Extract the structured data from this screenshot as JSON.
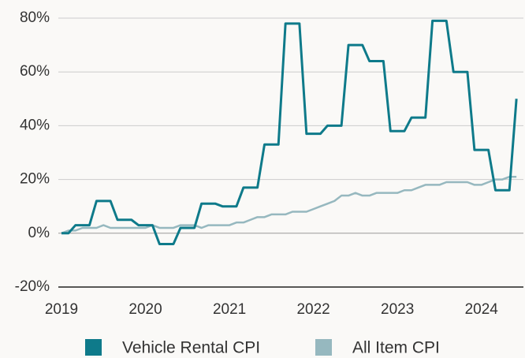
{
  "chart_data": {
    "type": "line",
    "x": [
      2019,
      2019.083,
      2019.167,
      2019.25,
      2019.333,
      2019.417,
      2019.5,
      2019.583,
      2019.667,
      2019.75,
      2019.833,
      2019.917,
      2020,
      2020.083,
      2020.167,
      2020.25,
      2020.333,
      2020.417,
      2020.5,
      2020.583,
      2020.667,
      2020.75,
      2020.833,
      2020.917,
      2021,
      2021.083,
      2021.167,
      2021.25,
      2021.333,
      2021.417,
      2021.5,
      2021.583,
      2021.667,
      2021.75,
      2021.833,
      2021.917,
      2022,
      2022.083,
      2022.167,
      2022.25,
      2022.333,
      2022.417,
      2022.5,
      2022.583,
      2022.667,
      2022.75,
      2022.833,
      2022.917,
      2023,
      2023.083,
      2023.167,
      2023.25,
      2023.333,
      2023.417,
      2023.5,
      2023.583,
      2023.667,
      2023.75,
      2023.833,
      2023.917,
      2024,
      2024.083,
      2024.167,
      2024.25,
      2024.333,
      2024.417
    ],
    "series": [
      {
        "name": "Vehicle Rental CPI",
        "color": "#0e7a8a",
        "values": [
          0,
          0,
          3,
          3,
          3,
          12,
          12,
          12,
          5,
          5,
          5,
          3,
          3,
          3,
          -4,
          -4,
          -4,
          2,
          2,
          2,
          11,
          11,
          11,
          10,
          10,
          10,
          17,
          17,
          17,
          33,
          33,
          33,
          78,
          78,
          78,
          37,
          37,
          37,
          40,
          40,
          40,
          70,
          70,
          70,
          64,
          64,
          64,
          38,
          38,
          38,
          43,
          43,
          43,
          79,
          79,
          79,
          60,
          60,
          60,
          31,
          31,
          31,
          16,
          16,
          16,
          50
        ]
      },
      {
        "name": "All Item CPI",
        "color": "#96b8bf",
        "values": [
          0,
          1,
          1,
          2,
          2,
          2,
          3,
          2,
          2,
          2,
          2,
          2,
          2,
          3,
          2,
          2,
          2,
          3,
          3,
          3,
          2,
          3,
          3,
          3,
          3,
          4,
          4,
          5,
          6,
          6,
          7,
          7,
          7,
          8,
          8,
          8,
          9,
          10,
          11,
          12,
          14,
          14,
          15,
          14,
          14,
          15,
          15,
          15,
          15,
          16,
          16,
          17,
          18,
          18,
          18,
          19,
          19,
          19,
          19,
          18,
          18,
          19,
          20,
          20,
          21,
          21
        ]
      }
    ],
    "xlim": [
      2019,
      2024.5
    ],
    "xticks": [
      2019,
      2020,
      2021,
      2022,
      2023,
      2024
    ],
    "ylim": [
      -20,
      80
    ],
    "yticks": [
      {
        "value": -20,
        "label": "-20%"
      },
      {
        "value": 0,
        "label": "0%"
      },
      {
        "value": 20,
        "label": "20%"
      },
      {
        "value": 40,
        "label": "40%"
      },
      {
        "value": 60,
        "label": "60%"
      },
      {
        "value": 80,
        "label": "80%"
      }
    ],
    "grid": true,
    "legend": "bottom"
  }
}
